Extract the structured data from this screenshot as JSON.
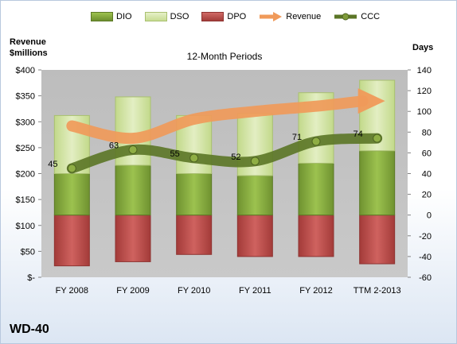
{
  "company": "WD-40",
  "chart_data": {
    "type": "bar",
    "subtitle": "12-Month Periods",
    "left_axis_title_1": "Revenue",
    "left_axis_title_2": "$millions",
    "right_axis_title": "Days",
    "categories": [
      "FY 2008",
      "FY 2009",
      "FY 2010",
      "FY 2011",
      "FY 2012",
      "TTM 2-2013"
    ],
    "left_ticks": [
      "$-",
      "$50",
      "$100",
      "$150",
      "$200",
      "$250",
      "$300",
      "$350",
      "$400"
    ],
    "left_ylim": [
      0,
      400
    ],
    "right_ticks": [
      "-60",
      "-40",
      "-20",
      "0",
      "20",
      "40",
      "60",
      "80",
      "100",
      "120",
      "140"
    ],
    "right_ylim": [
      -60,
      140
    ],
    "legend": [
      "DIO",
      "DSO",
      "DPO",
      "Revenue",
      "CCC"
    ],
    "colors": {
      "DIO": "#7fa33a",
      "DSO": "#d3e4a6",
      "DPO": "#b94a48",
      "Revenue": "#f09a5a",
      "CCC": "#5b7526",
      "plot_bg": "#bfbfbf"
    },
    "series": [
      {
        "name": "DIO",
        "values": [
          40,
          48,
          40,
          38,
          50,
          62
        ]
      },
      {
        "name": "DSO",
        "values": [
          56,
          66,
          56,
          60,
          68,
          68
        ]
      },
      {
        "name": "DPO",
        "values": [
          -49,
          -45,
          -38,
          -40,
          -40,
          -47
        ]
      },
      {
        "name": "Revenue",
        "axis": "left",
        "values": [
          292,
          268,
          305,
          320,
          330,
          340
        ]
      },
      {
        "name": "CCC",
        "axis": "right",
        "values": [
          45,
          63,
          55,
          52,
          71,
          74
        ]
      }
    ],
    "ccc_labels": [
      "45",
      "63",
      "55",
      "52",
      "71",
      "74"
    ]
  }
}
